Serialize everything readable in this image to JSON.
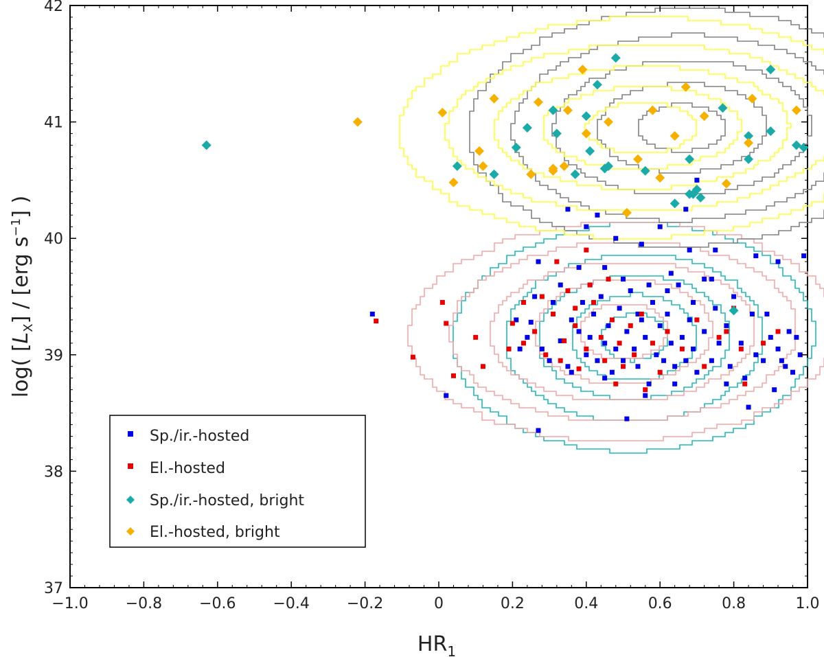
{
  "chart_data": {
    "type": "scatter",
    "xlabel": "HR",
    "xlabel_sub": "1",
    "ylabel_prefix": "log( [",
    "ylabel_L": "L",
    "ylabel_L_sub": "X",
    "ylabel_mid": "] / [erg s",
    "ylabel_exp": "−1",
    "ylabel_suffix": "] )",
    "xlim": [
      -1.0,
      1.0
    ],
    "ylim": [
      37,
      42
    ],
    "x_ticks": [
      "−1.0",
      "−0.8",
      "−0.6",
      "−0.4",
      "−0.2",
      "0",
      "0.2",
      "0.4",
      "0.6",
      "0.8",
      "1.0"
    ],
    "x_tick_values": [
      -1.0,
      -0.8,
      -0.6,
      -0.4,
      -0.2,
      0,
      0.2,
      0.4,
      0.6,
      0.8,
      1.0
    ],
    "y_ticks": [
      "37",
      "38",
      "39",
      "40",
      "41",
      "42"
    ],
    "y_tick_values": [
      37,
      38,
      39,
      40,
      41,
      42
    ],
    "grid": false,
    "legend_position": "bottom-left",
    "colors": {
      "sp_hosted": "#0000e6",
      "el_hosted": "#e60000",
      "sp_bright": "#1aaaa8",
      "el_bright": "#f5b000",
      "contour_sp": "#22b8b8",
      "contour_el": "#f4a6a6",
      "contour_sp_bright": "#808080",
      "contour_el_bright": "#ffff33"
    },
    "series": [
      {
        "name": "Sp./ir.-hosted",
        "marker": "square",
        "color": "#0000e6",
        "points": [
          [
            -0.18,
            39.35
          ],
          [
            0.02,
            38.65
          ],
          [
            0.27,
            38.35
          ],
          [
            0.51,
            38.45
          ],
          [
            0.25,
            39.28
          ],
          [
            0.28,
            39.05
          ],
          [
            0.3,
            38.95
          ],
          [
            0.33,
            39.12
          ],
          [
            0.35,
            38.9
          ],
          [
            0.36,
            39.3
          ],
          [
            0.38,
            39.2
          ],
          [
            0.39,
            39.45
          ],
          [
            0.4,
            39.0
          ],
          [
            0.41,
            39.15
          ],
          [
            0.42,
            39.35
          ],
          [
            0.43,
            38.95
          ],
          [
            0.44,
            39.5
          ],
          [
            0.45,
            39.1
          ],
          [
            0.46,
            39.25
          ],
          [
            0.47,
            38.85
          ],
          [
            0.48,
            39.05
          ],
          [
            0.49,
            39.4
          ],
          [
            0.5,
            38.95
          ],
          [
            0.51,
            39.2
          ],
          [
            0.52,
            39.55
          ],
          [
            0.53,
            39.05
          ],
          [
            0.54,
            38.9
          ],
          [
            0.55,
            39.3
          ],
          [
            0.56,
            39.15
          ],
          [
            0.57,
            38.75
          ],
          [
            0.58,
            39.45
          ],
          [
            0.59,
            39.0
          ],
          [
            0.6,
            39.25
          ],
          [
            0.61,
            38.95
          ],
          [
            0.62,
            39.35
          ],
          [
            0.63,
            39.1
          ],
          [
            0.64,
            38.9
          ],
          [
            0.65,
            39.6
          ],
          [
            0.66,
            39.15
          ],
          [
            0.67,
            38.95
          ],
          [
            0.68,
            39.3
          ],
          [
            0.69,
            39.05
          ],
          [
            0.7,
            38.85
          ],
          [
            0.72,
            39.2
          ],
          [
            0.74,
            38.95
          ],
          [
            0.75,
            39.4
          ],
          [
            0.76,
            39.1
          ],
          [
            0.78,
            39.25
          ],
          [
            0.79,
            38.9
          ],
          [
            0.8,
            39.5
          ],
          [
            0.82,
            39.1
          ],
          [
            0.83,
            38.8
          ],
          [
            0.85,
            39.35
          ],
          [
            0.86,
            39.0
          ],
          [
            0.88,
            38.95
          ],
          [
            0.9,
            39.15
          ],
          [
            0.91,
            38.7
          ],
          [
            0.92,
            39.05
          ],
          [
            0.93,
            38.95
          ],
          [
            0.95,
            39.2
          ],
          [
            0.96,
            38.85
          ],
          [
            0.98,
            39.0
          ],
          [
            0.99,
            39.85
          ],
          [
            0.92,
            39.8
          ],
          [
            0.86,
            39.85
          ],
          [
            0.72,
            39.65
          ],
          [
            0.68,
            39.9
          ],
          [
            0.63,
            39.7
          ],
          [
            0.55,
            39.95
          ],
          [
            0.48,
            40.0
          ],
          [
            0.4,
            40.1
          ],
          [
            0.35,
            40.25
          ],
          [
            0.43,
            40.2
          ],
          [
            0.27,
            39.8
          ],
          [
            0.33,
            39.6
          ],
          [
            0.38,
            39.75
          ],
          [
            0.5,
            39.65
          ],
          [
            0.6,
            40.1
          ],
          [
            0.67,
            40.25
          ],
          [
            0.7,
            40.5
          ],
          [
            0.75,
            39.9
          ],
          [
            0.84,
            38.55
          ],
          [
            0.78,
            38.75
          ],
          [
            0.64,
            38.75
          ],
          [
            0.56,
            38.65
          ],
          [
            0.45,
            38.8
          ],
          [
            0.36,
            38.85
          ],
          [
            0.24,
            39.15
          ],
          [
            0.21,
            39.3
          ],
          [
            0.22,
            39.05
          ],
          [
            0.26,
            39.5
          ],
          [
            0.31,
            39.45
          ],
          [
            0.57,
            39.6
          ],
          [
            0.45,
            39.75
          ],
          [
            0.41,
            39.6
          ],
          [
            0.62,
            39.55
          ],
          [
            0.69,
            39.45
          ],
          [
            0.74,
            39.65
          ],
          [
            0.89,
            39.35
          ],
          [
            0.94,
            38.9
          ],
          [
            0.97,
            39.15
          ],
          [
            0.54,
            39.35
          ]
        ]
      },
      {
        "name": "El.-hosted",
        "marker": "square",
        "color": "#e60000",
        "points": [
          [
            -0.17,
            39.29
          ],
          [
            0.01,
            39.45
          ],
          [
            0.02,
            39.27
          ],
          [
            0.04,
            38.82
          ],
          [
            -0.07,
            38.98
          ],
          [
            0.1,
            39.15
          ],
          [
            0.12,
            38.9
          ],
          [
            0.19,
            39.05
          ],
          [
            0.2,
            39.27
          ],
          [
            0.23,
            39.45
          ],
          [
            0.26,
            39.2
          ],
          [
            0.29,
            39.0
          ],
          [
            0.31,
            39.35
          ],
          [
            0.33,
            38.95
          ],
          [
            0.34,
            39.12
          ],
          [
            0.37,
            39.25
          ],
          [
            0.38,
            38.88
          ],
          [
            0.4,
            39.05
          ],
          [
            0.42,
            39.45
          ],
          [
            0.44,
            39.15
          ],
          [
            0.45,
            38.95
          ],
          [
            0.47,
            39.3
          ],
          [
            0.49,
            39.1
          ],
          [
            0.5,
            38.9
          ],
          [
            0.52,
            39.25
          ],
          [
            0.53,
            39.0
          ],
          [
            0.55,
            39.35
          ],
          [
            0.58,
            39.1
          ],
          [
            0.6,
            38.85
          ],
          [
            0.62,
            39.2
          ],
          [
            0.66,
            39.05
          ],
          [
            0.7,
            39.3
          ],
          [
            0.72,
            38.9
          ],
          [
            0.76,
            39.15
          ],
          [
            0.8,
            39.4
          ],
          [
            0.82,
            39.05
          ],
          [
            0.88,
            39.1
          ],
          [
            0.92,
            39.2
          ],
          [
            0.35,
            39.55
          ],
          [
            0.32,
            39.8
          ],
          [
            0.4,
            39.9
          ],
          [
            0.46,
            39.65
          ],
          [
            0.41,
            39.6
          ],
          [
            0.28,
            39.5
          ],
          [
            0.23,
            39.1
          ],
          [
            0.37,
            39.4
          ],
          [
            0.56,
            38.7
          ],
          [
            0.48,
            38.75
          ],
          [
            0.83,
            38.75
          ],
          [
            0.78,
            39.2
          ]
        ]
      },
      {
        "name": "Sp./ir.-hosted, bright",
        "marker": "diamond",
        "color": "#1aaaa8",
        "points": [
          [
            -0.63,
            40.8
          ],
          [
            0.05,
            40.62
          ],
          [
            0.15,
            40.55
          ],
          [
            0.21,
            40.78
          ],
          [
            0.24,
            40.95
          ],
          [
            0.31,
            41.1
          ],
          [
            0.32,
            40.9
          ],
          [
            0.37,
            40.55
          ],
          [
            0.4,
            41.05
          ],
          [
            0.41,
            40.75
          ],
          [
            0.43,
            41.32
          ],
          [
            0.45,
            40.6
          ],
          [
            0.46,
            40.62
          ],
          [
            0.48,
            41.55
          ],
          [
            0.56,
            40.58
          ],
          [
            0.64,
            40.3
          ],
          [
            0.68,
            40.68
          ],
          [
            0.69,
            40.38
          ],
          [
            0.7,
            40.42
          ],
          [
            0.71,
            40.35
          ],
          [
            0.77,
            41.12
          ],
          [
            0.8,
            39.38
          ],
          [
            0.84,
            40.68
          ],
          [
            0.84,
            40.88
          ],
          [
            0.9,
            40.92
          ],
          [
            0.9,
            41.45
          ],
          [
            0.97,
            40.8
          ],
          [
            0.99,
            40.78
          ],
          [
            0.68,
            40.38
          ]
        ]
      },
      {
        "name": "El.-hosted, bright",
        "marker": "diamond",
        "color": "#f5b000",
        "points": [
          [
            -0.22,
            41.0
          ],
          [
            0.01,
            41.08
          ],
          [
            0.04,
            40.48
          ],
          [
            0.11,
            40.75
          ],
          [
            0.12,
            40.62
          ],
          [
            0.15,
            41.2
          ],
          [
            0.25,
            40.55
          ],
          [
            0.27,
            41.17
          ],
          [
            0.31,
            40.58
          ],
          [
            0.31,
            40.6
          ],
          [
            0.34,
            40.62
          ],
          [
            0.35,
            41.1
          ],
          [
            0.39,
            41.45
          ],
          [
            0.4,
            40.9
          ],
          [
            0.46,
            41.0
          ],
          [
            0.51,
            40.22
          ],
          [
            0.58,
            41.1
          ],
          [
            0.6,
            40.52
          ],
          [
            0.64,
            40.88
          ],
          [
            0.67,
            41.3
          ],
          [
            0.72,
            41.05
          ],
          [
            0.78,
            40.47
          ],
          [
            0.84,
            40.82
          ],
          [
            0.85,
            41.2
          ],
          [
            0.97,
            41.1
          ],
          [
            0.54,
            40.68
          ]
        ]
      }
    ],
    "contours": [
      {
        "name": "sp-contours",
        "color": "#22b8b8",
        "center": [
          0.53,
          39.15
        ],
        "radii": [
          [
            0.09,
            0.2
          ],
          [
            0.17,
            0.37
          ],
          [
            0.26,
            0.53
          ],
          [
            0.35,
            0.72
          ],
          [
            0.49,
            0.98
          ]
        ]
      },
      {
        "name": "el-contours",
        "color": "#f4a6a6",
        "center": [
          0.5,
          39.2
        ],
        "radii": [
          [
            0.12,
            0.24
          ],
          [
            0.24,
            0.45
          ],
          [
            0.36,
            0.6
          ],
          [
            0.47,
            0.77
          ],
          [
            0.58,
            0.94
          ]
        ]
      },
      {
        "name": "sp-bright-contours",
        "color": "#808080",
        "center": [
          0.66,
          40.95
        ],
        "radii": [
          [
            0.12,
            0.2
          ],
          [
            0.23,
            0.38
          ],
          [
            0.35,
            0.58
          ],
          [
            0.46,
            0.8
          ],
          [
            0.58,
            1.02
          ]
        ]
      },
      {
        "name": "el-bright-contours",
        "color": "#ffff33",
        "center": [
          0.55,
          40.95
        ],
        "radii": [
          [
            0.15,
            0.22
          ],
          [
            0.27,
            0.35
          ],
          [
            0.4,
            0.53
          ],
          [
            0.53,
            0.72
          ],
          [
            0.66,
            0.95
          ]
        ]
      }
    ]
  }
}
